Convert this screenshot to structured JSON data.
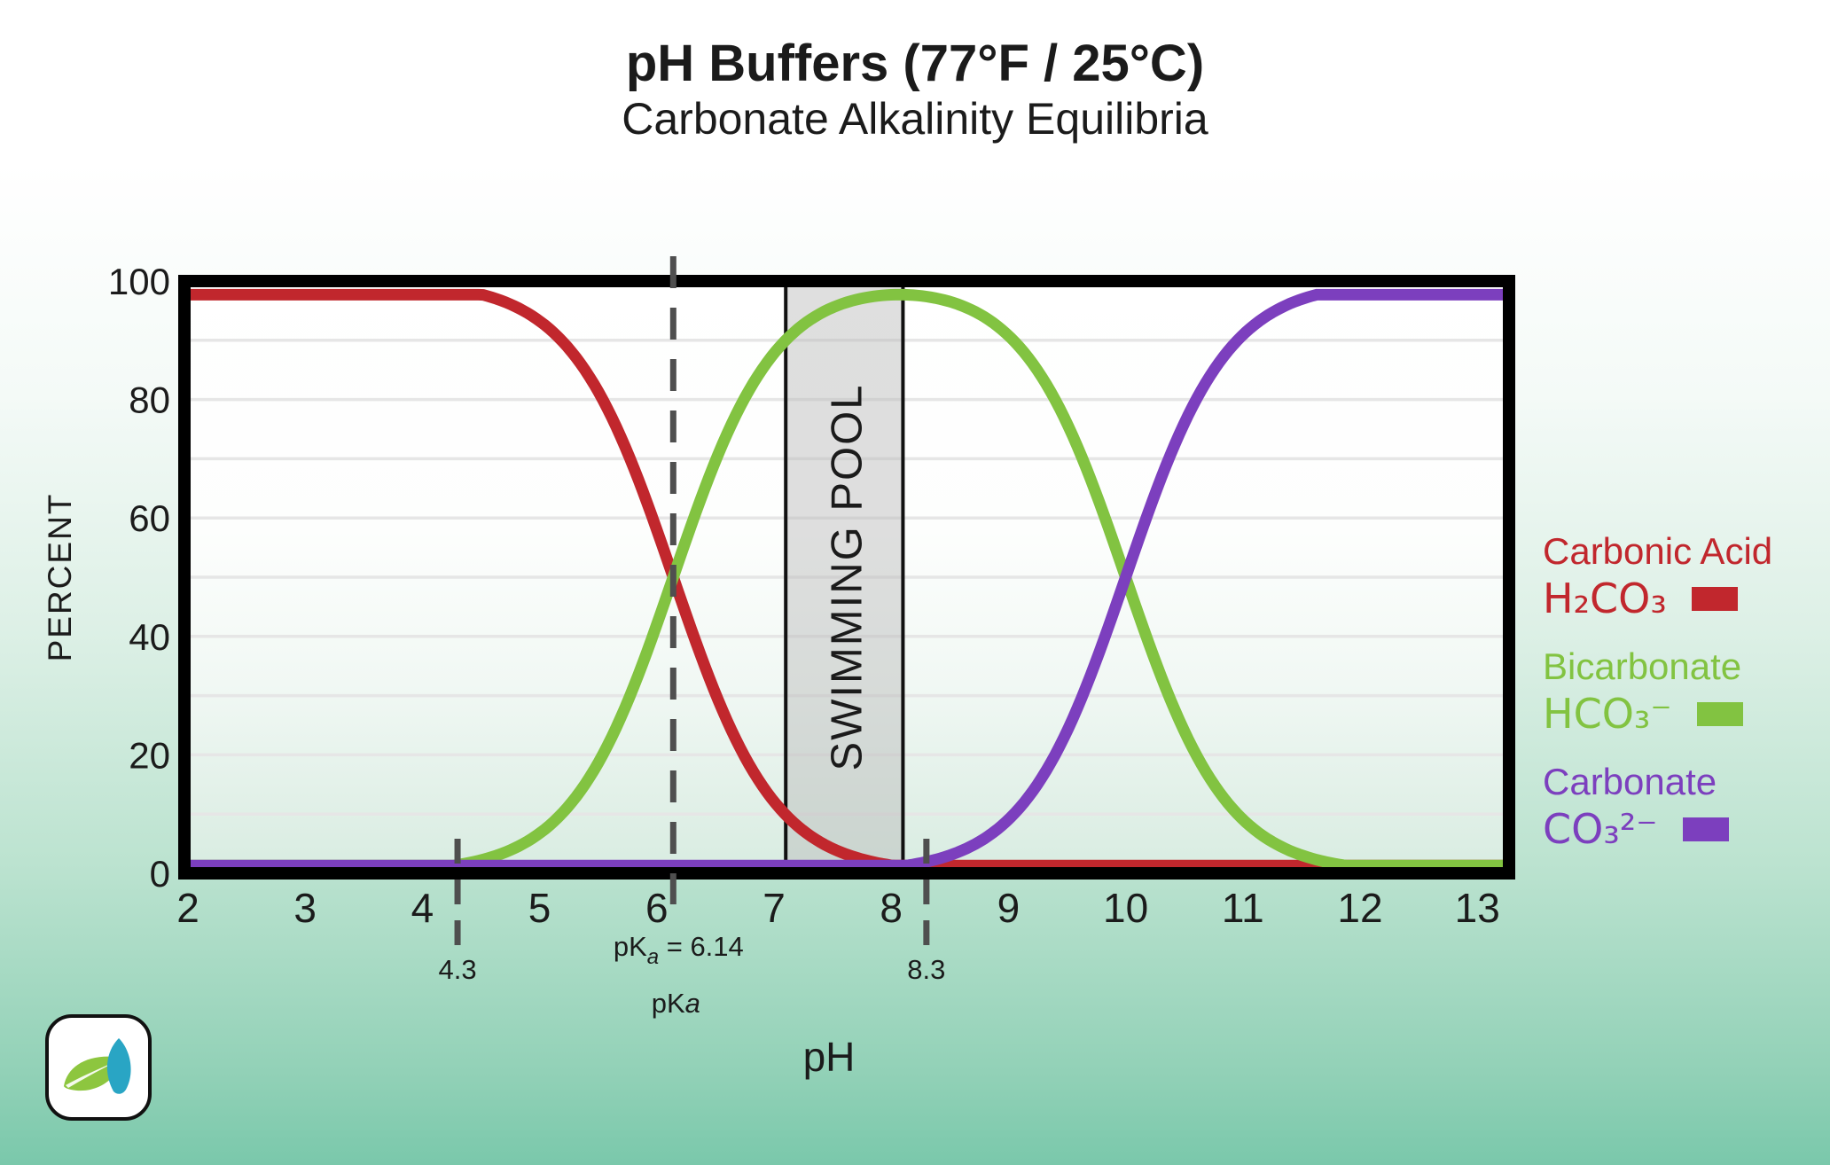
{
  "page": {
    "title": "pH Buffers (77°F / 25°C)",
    "subtitle": "Carbonate Alkalinity Equilibria"
  },
  "colors": {
    "carbonic_red": "#c1272d",
    "bicarbonate_green": "#82c341",
    "carbonate_purple": "#7c3fbe",
    "grid": "#e6e6e6",
    "dash_gray": "#4f4f4f",
    "pool_band_fill": "#b9b9b9",
    "axis_black": "#000000",
    "text_dark": "#1b1b1b"
  },
  "chart_data": {
    "type": "line",
    "title": "pH Buffers (77°F / 25°C)",
    "subtitle": "Carbonate Alkalinity Equilibria",
    "xlabel": "pH",
    "ylabel": "PERCENT",
    "xlim": [
      2,
      13
    ],
    "ylim": [
      0,
      100
    ],
    "x_ticks": [
      2,
      3,
      4,
      5,
      6,
      7,
      8,
      9,
      10,
      11,
      12,
      13
    ],
    "y_ticks": [
      0,
      20,
      40,
      60,
      80,
      100
    ],
    "gridline_step": 10,
    "grid_on": true,
    "legend_position": "right",
    "pka1": 6.14,
    "pka2": 10.0,
    "x": [
      2,
      2.5,
      3,
      3.5,
      4,
      4.5,
      5,
      5.5,
      6,
      6.5,
      7,
      7.5,
      8,
      8.5,
      9,
      9.5,
      10,
      10.5,
      11,
      11.5,
      12,
      12.5,
      13
    ],
    "series": [
      {
        "name": "Carbonic Acid",
        "formula": "H₂CO₃",
        "color": "#c1272d",
        "values": [
          100,
          99.98,
          99.9,
          99.8,
          99.3,
          97.8,
          93.2,
          81.4,
          58.0,
          30.4,
          12.1,
          4.2,
          1.3,
          0.4,
          0.1,
          0,
          0,
          0,
          0,
          0,
          0,
          0,
          0
        ]
      },
      {
        "name": "Bicarbonate",
        "formula": "HCO₃⁻",
        "color": "#82c341",
        "values": [
          0.01,
          0.02,
          0.07,
          0.2,
          0.7,
          2.2,
          6.8,
          18.6,
          42.0,
          69.6,
          87.8,
          95.5,
          97.7,
          96.5,
          90.8,
          76.0,
          50.0,
          24.0,
          9.1,
          3.1,
          1.0,
          0.3,
          0.1
        ]
      },
      {
        "name": "Carbonate",
        "formula": "CO₃²⁻",
        "color": "#7c3fbe",
        "values": [
          0,
          0,
          0,
          0,
          0,
          0,
          0,
          0,
          0,
          0.1,
          0.1,
          0.3,
          1.0,
          3.1,
          9.1,
          24.0,
          50.0,
          76.0,
          90.9,
          96.9,
          99.0,
          99.7,
          99.9
        ]
      }
    ],
    "annotations": {
      "band": {
        "label": "SWIMMING POOL",
        "ph_start": 7.1,
        "ph_end": 8.1
      },
      "dashed_line_1": {
        "ph": 4.3,
        "label": "4.3"
      },
      "dashed_line_2": {
        "ph": 6.14,
        "label_prefix": "pK",
        "label_sub": "a",
        "label_rest": " = 6.14",
        "sublabel_prefix": "pK",
        "sublabel_italic": "a"
      },
      "dashed_line_3": {
        "ph": 8.3,
        "label": "8.3"
      }
    }
  },
  "legend": {
    "items": [
      {
        "name": "Carbonic Acid",
        "formula": "H₂CO₃",
        "color": "#c1272d"
      },
      {
        "name": "Bicarbonate",
        "formula": "HCO₃⁻",
        "color": "#82c341"
      },
      {
        "name": "Carbonate",
        "formula": "CO₃²⁻",
        "color": "#7c3fbe"
      }
    ]
  },
  "logo": {
    "icons": [
      "green-leaf-icon",
      "blue-water-leaf-icon"
    ]
  }
}
